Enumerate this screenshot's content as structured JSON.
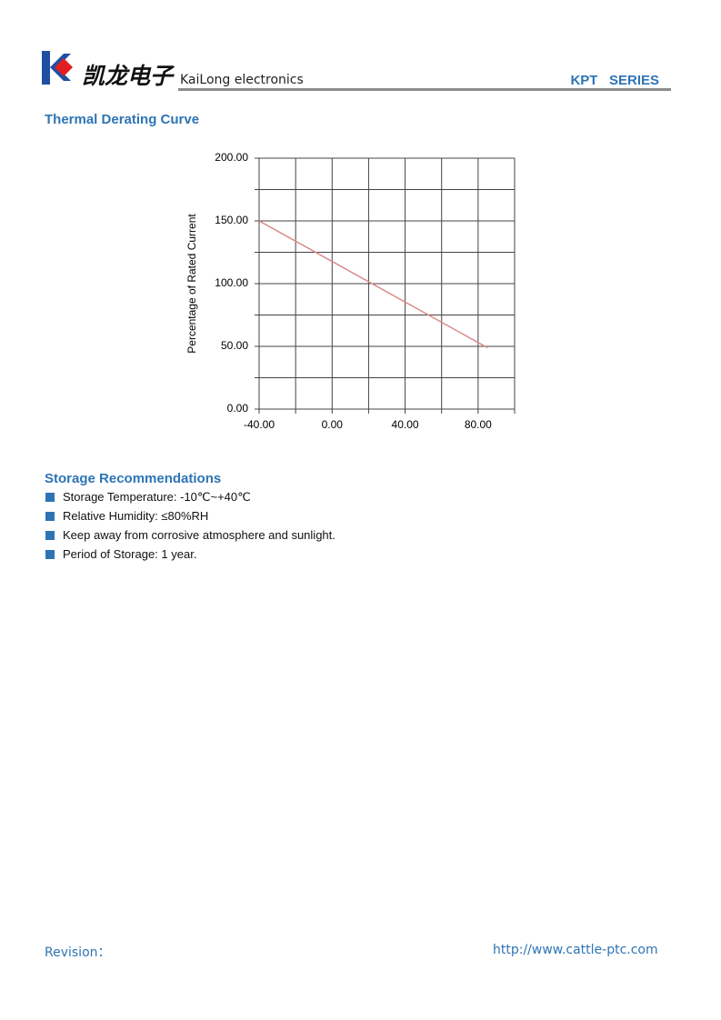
{
  "header": {
    "brand_cn": "凯龙电子",
    "brand_en": "KaiLong electronics",
    "series": "KPT   SERIES"
  },
  "section_title": "Thermal Derating Curve",
  "chart_data": {
    "type": "line",
    "y_label": "Percentage of Rated Current",
    "x": [
      -40,
      85
    ],
    "series": [
      {
        "color": "#d98a8a",
        "values": [
          150,
          49
        ]
      }
    ],
    "xlim": [
      -40,
      100
    ],
    "xticks": [
      {
        "value": -40,
        "label": "-40.00"
      },
      {
        "value": 0,
        "label": "0.00"
      },
      {
        "value": 40,
        "label": "40.00"
      },
      {
        "value": 80,
        "label": "80.00"
      }
    ],
    "x_minor_ticks": [
      -20,
      20,
      60,
      100
    ],
    "ylim": [
      0,
      200
    ],
    "yticks": [
      {
        "value": 0,
        "label": "0.00"
      },
      {
        "value": 50,
        "label": "50.00"
      },
      {
        "value": 100,
        "label": "100.00"
      },
      {
        "value": 150,
        "label": "150.00"
      },
      {
        "value": 200,
        "label": "200.00"
      }
    ],
    "y_minor_ticks": [
      25,
      75,
      125,
      175
    ],
    "grid": true
  },
  "storage": {
    "title": "Storage Recommendations",
    "items": [
      "Storage Temperature: -10℃~+40℃",
      "Relative Humidity: ≤80%RH",
      "Keep away from corrosive atmosphere and sunlight.",
      "Period of Storage: 1 year."
    ]
  },
  "footer": {
    "revision": "Revision：",
    "url": "http://www.cattle-ptc.com"
  }
}
